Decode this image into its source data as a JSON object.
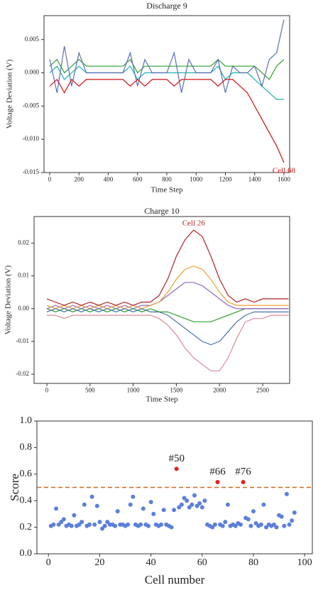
{
  "chart_data": [
    {
      "type": "line",
      "title": "Discharge 9",
      "xlabel": "Time Step",
      "ylabel": "Voltage Deviation (V)",
      "xlim": [
        -39,
        1639
      ],
      "ylim": [
        -0.015,
        0.0086
      ],
      "xticks": [
        0,
        200,
        400,
        600,
        800,
        1000,
        1200,
        1400,
        1600
      ],
      "yticks": [
        0.005,
        {
          "value": 0,
          "label": "0.000"
        },
        -0.005,
        {
          "value": -0.01,
          "label": "-0.010"
        },
        {
          "value": -0.015,
          "label": "-0.015"
        }
      ],
      "x": [
        0,
        50,
        100,
        150,
        200,
        250,
        300,
        350,
        400,
        450,
        500,
        550,
        600,
        650,
        700,
        750,
        800,
        850,
        900,
        950,
        1000,
        1050,
        1100,
        1150,
        1200,
        1250,
        1300,
        1350,
        1400,
        1450,
        1500,
        1550,
        1600
      ],
      "series": [
        {
          "color": "#20b2aa",
          "values": [
            0,
            0.001,
            -0.001,
            0,
            0.001,
            0,
            0,
            0,
            0,
            0,
            0,
            0.001,
            -0.001,
            0,
            0,
            0,
            0,
            0,
            0,
            0,
            0,
            0,
            0,
            0.001,
            -0.001,
            0,
            0,
            0,
            -0.001,
            -0.002,
            -0.003,
            -0.004,
            -0.004
          ]
        },
        {
          "color": "#2ca02c",
          "values": [
            0.001,
            0.002,
            0,
            0.001,
            0.002,
            0.001,
            0.001,
            0.001,
            0.001,
            0.001,
            0.001,
            0.002,
            0,
            0.001,
            0.001,
            0.001,
            0.001,
            0.001,
            0.001,
            0.001,
            0.001,
            0.001,
            0.001,
            0.002,
            0.001,
            0.001,
            0.001,
            0.001,
            0.001,
            0,
            -0.001,
            0.001,
            0.002
          ]
        },
        {
          "color": "#5b6fb5",
          "values": [
            0.002,
            -0.003,
            0.004,
            -0.002,
            0.003,
            0,
            0,
            0,
            0,
            0,
            0,
            0.003,
            -0.002,
            0.002,
            0,
            0,
            0,
            0.003,
            -0.003,
            0.002,
            0,
            0,
            0,
            0.002,
            -0.003,
            0.001,
            0,
            0,
            0.001,
            -0.002,
            0.002,
            0.003,
            0.008
          ]
        },
        {
          "color": "#cc1111",
          "annotation": "Cell 68",
          "values": [
            -0.002,
            -0.001,
            -0.003,
            -0.001,
            -0.002,
            -0.001,
            -0.001,
            -0.001,
            -0.001,
            -0.001,
            -0.001,
            -0.002,
            -0.001,
            -0.002,
            -0.001,
            -0.001,
            -0.001,
            -0.002,
            -0.001,
            -0.001,
            -0.001,
            -0.001,
            -0.001,
            -0.002,
            -0.001,
            -0.001,
            -0.002,
            -0.003,
            -0.005,
            -0.007,
            -0.009,
            -0.011,
            -0.0135
          ]
        }
      ]
    },
    {
      "type": "line",
      "title": "Charge 10",
      "xlabel": "Time Step",
      "ylabel": "Voltage Deviation (V)",
      "xlim": [
        -148,
        2812
      ],
      "ylim": [
        -0.0228,
        0.0281
      ],
      "xticks": [
        0,
        500,
        1000,
        1500,
        2000,
        2500
      ],
      "yticks": [
        0.02,
        0.01,
        {
          "value": 0,
          "label": "0.00"
        },
        -0.01,
        -0.02
      ],
      "x": [
        0,
        100,
        200,
        300,
        400,
        500,
        600,
        700,
        800,
        900,
        1000,
        1100,
        1200,
        1300,
        1400,
        1500,
        1600,
        1700,
        1800,
        1900,
        2000,
        2100,
        2200,
        2300,
        2400,
        2500,
        2600,
        2700,
        2800
      ],
      "series": [
        {
          "color": "#2ca02c",
          "values": [
            0,
            -0.001,
            0,
            -0.001,
            0,
            -0.001,
            0,
            -0.001,
            0,
            -0.001,
            0,
            -0.001,
            0,
            -0.001,
            -0.001,
            -0.002,
            -0.003,
            -0.004,
            -0.004,
            -0.004,
            -0.003,
            -0.002,
            -0.001,
            0,
            0,
            0,
            0,
            0,
            0
          ]
        },
        {
          "color": "#9467bd",
          "values": [
            0,
            0.001,
            0,
            0.001,
            0,
            0.001,
            0,
            0.001,
            0,
            0.001,
            0,
            0.001,
            0.001,
            0.002,
            0.004,
            0.006,
            0.008,
            0.008,
            0.007,
            0.005,
            0.003,
            0.001,
            0,
            0,
            0,
            0,
            0,
            0,
            0
          ]
        },
        {
          "color": "#e8a030",
          "values": [
            0.001,
            0,
            0.001,
            0,
            0.001,
            0,
            0.001,
            0,
            0.001,
            0,
            0.001,
            0,
            0.001,
            0.002,
            0.005,
            0.009,
            0.012,
            0.013,
            0.012,
            0.009,
            0.005,
            0.002,
            0.001,
            0.001,
            0.001,
            0.001,
            0.001,
            0.001,
            0.001
          ]
        },
        {
          "color": "#4a6fa5",
          "values": [
            -0.001,
            0,
            -0.001,
            0,
            -0.001,
            0,
            -0.001,
            0,
            -0.001,
            0,
            -0.001,
            0,
            -0.001,
            -0.001,
            -0.002,
            -0.004,
            -0.006,
            -0.008,
            -0.01,
            -0.011,
            -0.01,
            -0.007,
            -0.004,
            -0.002,
            -0.001,
            -0.001,
            -0.001,
            -0.001,
            -0.001
          ]
        },
        {
          "color": "#d98a9a",
          "values": [
            -0.002,
            -0.002,
            -0.003,
            -0.002,
            -0.002,
            -0.002,
            -0.002,
            -0.002,
            -0.002,
            -0.002,
            -0.002,
            -0.002,
            -0.002,
            -0.003,
            -0.005,
            -0.008,
            -0.012,
            -0.015,
            -0.017,
            -0.019,
            -0.019,
            -0.015,
            -0.009,
            -0.004,
            -0.003,
            -0.003,
            -0.002,
            -0.002,
            -0.002
          ]
        },
        {
          "color": "#b22222",
          "annotation": "Cell 26",
          "values": [
            0.003,
            0.002,
            0.001,
            0.002,
            0.001,
            0.002,
            0.001,
            0.002,
            0.001,
            0.002,
            0.001,
            0.002,
            0.002,
            0.004,
            0.009,
            0.016,
            0.021,
            0.024,
            0.022,
            0.016,
            0.009,
            0.004,
            0.002,
            0.003,
            0.002,
            0.003,
            0.003,
            0.003,
            0.003
          ]
        }
      ]
    },
    {
      "type": "scatter",
      "xlabel": "Cell number",
      "ylabel": "Score",
      "xlim": [
        -4.5,
        103
      ],
      "ylim": [
        0,
        1
      ],
      "xticks": [
        0,
        20,
        40,
        60,
        80,
        100
      ],
      "yticks": [
        {
          "value": 0,
          "label": "0.0"
        },
        0.2,
        0.4,
        0.6,
        0.8,
        {
          "value": 1,
          "label": "1.0"
        }
      ],
      "reference_line": {
        "value": 0.5,
        "color": "#d2691e"
      },
      "series": [
        {
          "color": "#5b7fdb",
          "x": [
            1,
            2,
            3,
            4,
            5,
            6,
            7,
            8,
            9,
            10,
            11,
            12,
            13,
            14,
            15,
            16,
            17,
            18,
            19,
            20,
            21,
            22,
            23,
            24,
            25,
            26,
            27,
            28,
            29,
            30,
            31,
            32,
            33,
            34,
            35,
            36,
            37,
            38,
            39,
            40,
            41,
            42,
            43,
            44,
            45,
            46,
            47,
            48,
            49,
            51,
            52,
            53,
            54,
            55,
            56,
            57,
            58,
            59,
            60,
            61,
            62,
            63,
            64,
            65,
            67,
            68,
            69,
            70,
            71,
            72,
            73,
            74,
            75,
            77,
            78,
            79,
            80,
            81,
            82,
            83,
            84,
            85,
            86,
            87,
            88,
            89,
            90,
            91,
            92,
            93,
            94,
            95,
            96
          ],
          "values": [
            0.21,
            0.22,
            0.34,
            0.22,
            0.24,
            0.26,
            0.21,
            0.22,
            0.21,
            0.29,
            0.21,
            0.22,
            0.24,
            0.37,
            0.21,
            0.22,
            0.43,
            0.22,
            0.36,
            0.24,
            0.19,
            0.21,
            0.24,
            0.22,
            0.22,
            0.21,
            0.32,
            0.22,
            0.22,
            0.21,
            0.22,
            0.37,
            0.43,
            0.22,
            0.21,
            0.22,
            0.34,
            0.22,
            0.21,
            0.39,
            0.3,
            0.22,
            0.21,
            0.22,
            0.33,
            0.22,
            0.21,
            0.2,
            0.33,
            0.35,
            0.37,
            0.42,
            0.4,
            0.35,
            0.37,
            0.44,
            0.36,
            0.38,
            0.35,
            0.4,
            0.22,
            0.21,
            0.2,
            0.22,
            0.22,
            0.21,
            0.24,
            0.37,
            0.21,
            0.22,
            0.21,
            0.23,
            0.22,
            0.27,
            0.26,
            0.21,
            0.32,
            0.23,
            0.21,
            0.22,
            0.37,
            0.2,
            0.22,
            0.21,
            0.22,
            0.2,
            0.29,
            0.28,
            0.21,
            0.45,
            0.22,
            0.25,
            0.31
          ]
        },
        {
          "color": "#e02020",
          "x": [
            50,
            66,
            76
          ],
          "values": [
            0.64,
            0.54,
            0.54
          ],
          "labels": [
            "#50",
            "#66",
            "#76"
          ]
        }
      ]
    }
  ]
}
